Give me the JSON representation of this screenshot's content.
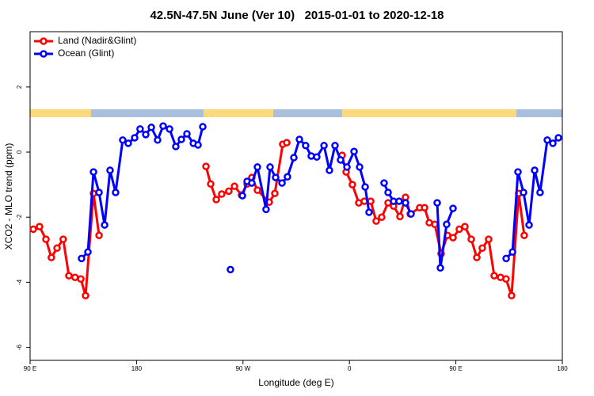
{
  "chart_data": {
    "type": "line",
    "title": "42.5N-47.5N June (Ver 10)   2015-01-01 to 2020-12-18",
    "x_label": "Longitude (deg E)",
    "y_label": "XCO2 - MLO trend (ppm)",
    "xlim": [
      90,
      540
    ],
    "ylim": [
      -6.4,
      3.7
    ],
    "xticks": [
      {
        "value": 90,
        "label": "90 E"
      },
      {
        "value": 180,
        "label": "180"
      },
      {
        "value": 270,
        "label": "90 W"
      },
      {
        "value": 360,
        "label": "0"
      },
      {
        "value": 450,
        "label": "90 E"
      },
      {
        "value": 540,
        "label": "180"
      }
    ],
    "yticks": [
      -6,
      -4,
      -2,
      0,
      2
    ],
    "legend": "top-left",
    "series": [
      {
        "name": "Land (Nadir&Glint)",
        "color": "#ff0000",
        "x": [
          92.7,
          98,
          103.4,
          108,
          112.8,
          118,
          122.8,
          128,
          132.9,
          136.9,
          143.6,
          148.3,
          null,
          238.7,
          242.7,
          247.4,
          252,
          258,
          262.8,
          268.8,
          273.5,
          277.5,
          282.2,
          292.2,
          296.9,
          303.6,
          307,
          null,
          353.8,
          357.2,
          362.5,
          367.9,
          372.6,
          378,
          382.6,
          387.3,
          392.7,
          397.3,
          402.7,
          407.4,
          411.4,
          419.4,
          423.5,
          427.5,
          432.2,
          437.5,
          442.9,
          447.6,
          452.9,
          457.6,
          463,
          467.7,
          472.3,
          477.7,
          482.4,
          487.8,
          492.4,
          497.1,
          503.1,
          507.8
        ],
        "values": [
          -2.37,
          -2.29,
          -2.68,
          -3.24,
          -2.95,
          -2.68,
          -3.8,
          -3.85,
          -3.9,
          -4.41,
          -1.27,
          -2.56,
          null,
          -0.44,
          -0.98,
          -1.46,
          -1.29,
          -1.2,
          -1.05,
          -1.32,
          -0.98,
          -0.78,
          -1.17,
          -1.54,
          -1.27,
          0.24,
          0.29,
          null,
          -0.1,
          -0.61,
          -1.0,
          -1.56,
          -1.51,
          -1.51,
          -2.12,
          -2.0,
          -1.56,
          -1.66,
          -1.98,
          -1.39,
          -1.9,
          -1.71,
          -1.71,
          -2.17,
          -2.22,
          -3.12,
          -2.56,
          -2.63,
          -2.37,
          -2.29,
          -2.68,
          -3.24,
          -2.95,
          -2.68,
          -3.8,
          -3.85,
          -3.9,
          -4.41,
          -1.27,
          -2.56
        ]
      },
      {
        "name": "Ocean (Glint)",
        "color": "#0000ff",
        "x": [
          133.5,
          138.9,
          143.6,
          148.3,
          153,
          157.6,
          162.3,
          168.3,
          173,
          178.4,
          183,
          187.8,
          192.5,
          197.8,
          202.5,
          207.9,
          213.2,
          217.9,
          222.6,
          228,
          232,
          236,
          null,
          259.4,
          null,
          269.5,
          273.5,
          277.5,
          282.2,
          289.5,
          292.9,
          297.6,
          303,
          307.6,
          313,
          317.7,
          323,
          327.7,
          332.4,
          338.5,
          343.1,
          347.8,
          352.5,
          357.9,
          363.9,
          368.6,
          373.3,
          376.6,
          null,
          389.3,
          392.7,
          397.3,
          402,
          407.4,
          412.1,
          null,
          434.2,
          436.9,
          442.2,
          447.6,
          null,
          492.5,
          497.9,
          502.5,
          507.2,
          511.9,
          516.6,
          521.2,
          527.3,
          532,
          536.7
        ],
        "values": [
          -3.27,
          -3.07,
          -0.61,
          -1.24,
          -2.24,
          -0.56,
          -1.24,
          0.37,
          0.27,
          0.44,
          0.71,
          0.54,
          0.76,
          0.37,
          0.8,
          0.71,
          0.17,
          0.39,
          0.56,
          0.27,
          0.22,
          0.78,
          null,
          -3.61,
          null,
          -1.34,
          -0.9,
          -0.95,
          -0.46,
          -1.76,
          -0.46,
          -0.78,
          -0.95,
          -0.76,
          -0.17,
          0.39,
          0.2,
          -0.12,
          -0.15,
          0.2,
          -0.56,
          0.2,
          -0.24,
          -0.46,
          0.02,
          -0.46,
          -1.07,
          -1.85,
          null,
          -0.95,
          -1.24,
          -1.51,
          -1.51,
          -1.56,
          -1.9,
          null,
          -1.56,
          -3.56,
          -2.22,
          -1.73,
          null,
          -3.27,
          -3.07,
          -0.61,
          -1.24,
          -2.24,
          -0.56,
          -1.24,
          0.37,
          0.27,
          0.44
        ]
      }
    ]
  }
}
